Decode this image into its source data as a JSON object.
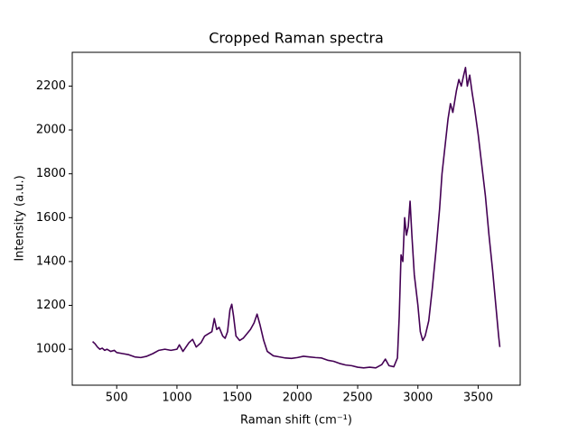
{
  "chart_data": {
    "type": "line",
    "title": "Cropped Raman spectra",
    "xlabel": "Raman shift (cm⁻¹)",
    "ylabel": "Intensity (a.u.)",
    "x": [
      300,
      320,
      340,
      360,
      380,
      400,
      420,
      450,
      480,
      500,
      550,
      600,
      650,
      700,
      750,
      800,
      850,
      900,
      950,
      1000,
      1020,
      1050,
      1100,
      1130,
      1160,
      1200,
      1230,
      1260,
      1290,
      1310,
      1330,
      1350,
      1380,
      1400,
      1420,
      1440,
      1455,
      1470,
      1490,
      1520,
      1550,
      1580,
      1610,
      1640,
      1665,
      1690,
      1720,
      1750,
      1800,
      1850,
      1900,
      1950,
      2000,
      2050,
      2100,
      2150,
      2200,
      2250,
      2300,
      2350,
      2400,
      2450,
      2500,
      2550,
      2600,
      2650,
      2700,
      2730,
      2760,
      2800,
      2830,
      2845,
      2860,
      2875,
      2890,
      2905,
      2920,
      2935,
      2950,
      2970,
      3000,
      3020,
      3040,
      3060,
      3090,
      3120,
      3150,
      3180,
      3200,
      3230,
      3250,
      3270,
      3290,
      3320,
      3340,
      3360,
      3380,
      3395,
      3410,
      3430,
      3450,
      3470,
      3500,
      3530,
      3560,
      3590,
      3620,
      3650,
      3670,
      3680
    ],
    "series": [
      {
        "color": "#440154",
        "values": [
          1035,
          1025,
          1010,
          1000,
          1005,
          995,
          1000,
          990,
          995,
          985,
          980,
          975,
          965,
          962,
          968,
          980,
          995,
          1000,
          995,
          1000,
          1020,
          990,
          1030,
          1045,
          1010,
          1030,
          1060,
          1070,
          1080,
          1140,
          1090,
          1100,
          1060,
          1050,
          1080,
          1180,
          1205,
          1150,
          1060,
          1040,
          1050,
          1070,
          1090,
          1120,
          1160,
          1110,
          1040,
          990,
          970,
          965,
          960,
          958,
          962,
          968,
          965,
          962,
          960,
          950,
          945,
          935,
          928,
          925,
          918,
          915,
          918,
          915,
          930,
          955,
          925,
          920,
          960,
          1150,
          1430,
          1400,
          1600,
          1520,
          1560,
          1675,
          1520,
          1340,
          1200,
          1080,
          1040,
          1060,
          1130,
          1280,
          1450,
          1640,
          1800,
          1950,
          2050,
          2120,
          2080,
          2180,
          2230,
          2200,
          2250,
          2285,
          2200,
          2250,
          2170,
          2100,
          1980,
          1840,
          1700,
          1520,
          1360,
          1180,
          1060,
          1010
        ]
      }
    ],
    "xlim": [
      131,
      3849
    ],
    "ylim": [
      836,
      2354
    ],
    "xticks": [
      500,
      1000,
      1500,
      2000,
      2500,
      3000,
      3500
    ],
    "yticks": [
      1000,
      1200,
      1400,
      1600,
      1800,
      2000,
      2200
    ]
  }
}
